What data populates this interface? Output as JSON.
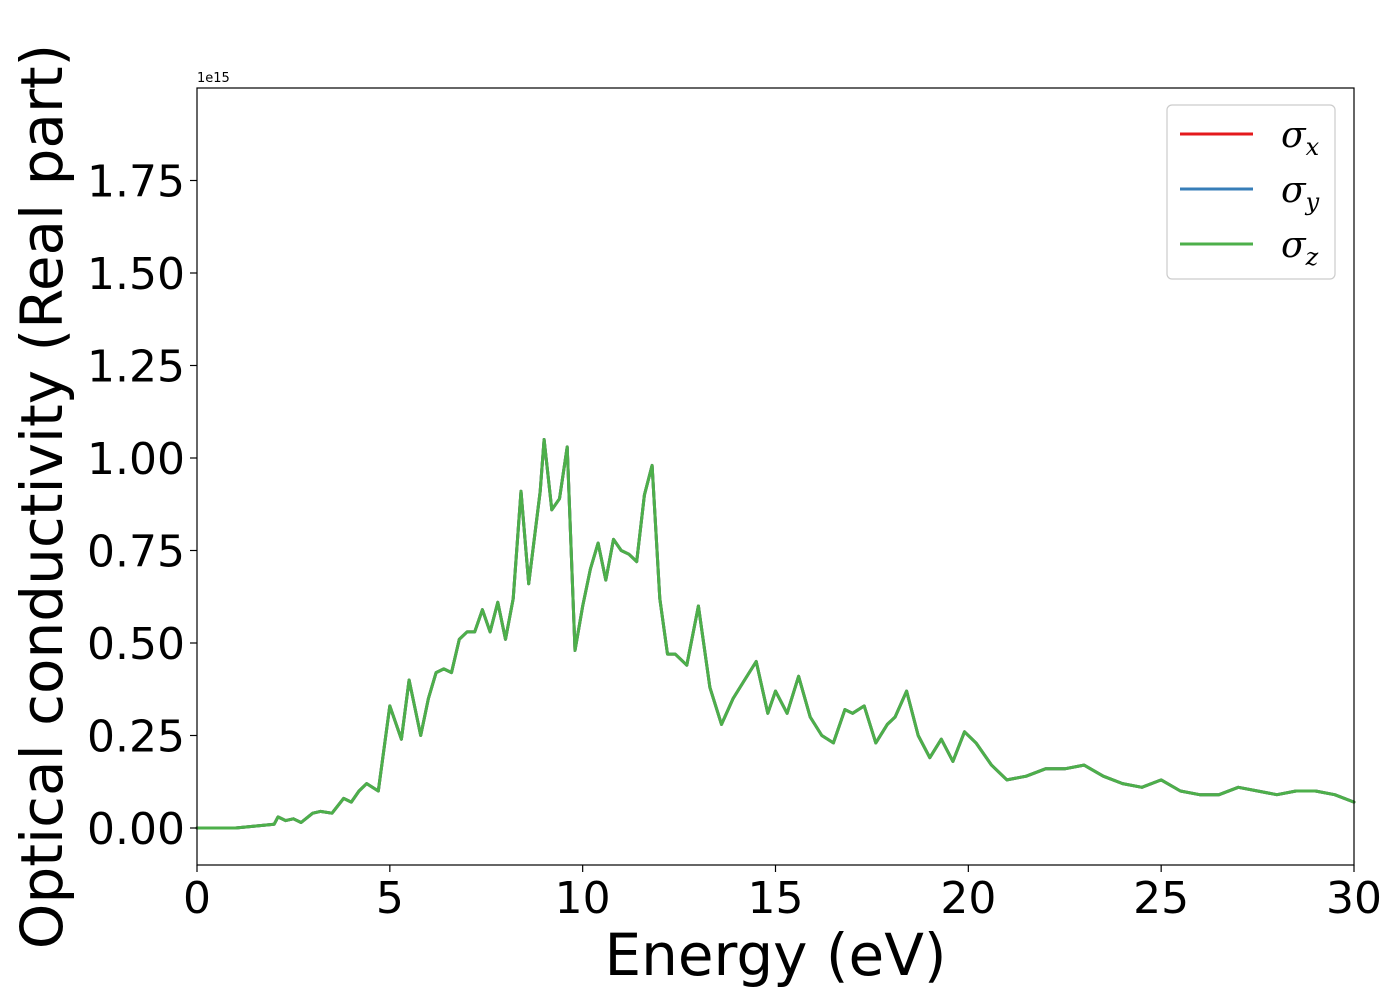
{
  "chart_data": {
    "type": "line",
    "xlabel": "Energy (eV)",
    "ylabel": "Optical conductivity (Real part)",
    "y_offset_label": "1e15",
    "xlim": [
      0,
      30
    ],
    "ylim": [
      -0.1,
      2.0
    ],
    "xticks": [
      0,
      5,
      10,
      15,
      20,
      25,
      30
    ],
    "xtick_labels": [
      "0",
      "5",
      "10",
      "15",
      "20",
      "25",
      "30"
    ],
    "yticks": [
      0.0,
      0.25,
      0.5,
      0.75,
      1.0,
      1.25,
      1.5,
      1.75
    ],
    "ytick_labels": [
      "0.00",
      "0.25",
      "0.50",
      "0.75",
      "1.00",
      "1.25",
      "1.50",
      "1.75"
    ],
    "grid": false,
    "legend_position": "top-right",
    "x": [
      0,
      0.5,
      1.0,
      1.5,
      2.0,
      2.1,
      2.3,
      2.5,
      2.7,
      3.0,
      3.2,
      3.5,
      3.8,
      4.0,
      4.2,
      4.4,
      4.7,
      5.0,
      5.3,
      5.5,
      5.8,
      6.0,
      6.2,
      6.4,
      6.6,
      6.8,
      7.0,
      7.2,
      7.4,
      7.6,
      7.8,
      8.0,
      8.2,
      8.4,
      8.6,
      8.9,
      9.0,
      9.2,
      9.4,
      9.6,
      9.8,
      10.0,
      10.2,
      10.4,
      10.6,
      10.8,
      11.0,
      11.2,
      11.4,
      11.6,
      11.8,
      12.0,
      12.2,
      12.4,
      12.7,
      13.0,
      13.3,
      13.6,
      13.9,
      14.2,
      14.5,
      14.8,
      15.0,
      15.3,
      15.6,
      15.9,
      16.2,
      16.5,
      16.8,
      17.0,
      17.3,
      17.6,
      17.9,
      18.1,
      18.4,
      18.7,
      19.0,
      19.3,
      19.6,
      19.9,
      20.2,
      20.6,
      21.0,
      21.5,
      22.0,
      22.5,
      23.0,
      23.5,
      24.0,
      24.5,
      25.0,
      25.5,
      26.0,
      26.5,
      27.0,
      27.5,
      28.0,
      28.5,
      29.0,
      29.5,
      30.0
    ],
    "series": [
      {
        "name": "σx",
        "color": "#e41a1c",
        "y": [
          0.0,
          0.0,
          0.0,
          0.005,
          0.01,
          0.03,
          0.02,
          0.025,
          0.015,
          0.04,
          0.045,
          0.04,
          0.08,
          0.07,
          0.1,
          0.12,
          0.1,
          0.33,
          0.24,
          0.4,
          0.25,
          0.35,
          0.42,
          0.43,
          0.42,
          0.51,
          0.53,
          0.53,
          0.59,
          0.53,
          0.61,
          0.51,
          0.62,
          0.91,
          0.66,
          0.91,
          1.05,
          0.86,
          0.89,
          1.03,
          0.48,
          0.6,
          0.7,
          0.77,
          0.67,
          0.78,
          0.75,
          0.74,
          0.72,
          0.9,
          0.98,
          0.62,
          0.47,
          0.47,
          0.44,
          0.6,
          0.38,
          0.28,
          0.35,
          0.4,
          0.45,
          0.31,
          0.37,
          0.31,
          0.41,
          0.3,
          0.25,
          0.23,
          0.32,
          0.31,
          0.33,
          0.23,
          0.28,
          0.3,
          0.37,
          0.25,
          0.19,
          0.24,
          0.18,
          0.26,
          0.23,
          0.17,
          0.13,
          0.14,
          0.16,
          0.16,
          0.17,
          0.14,
          0.12,
          0.11,
          0.13,
          0.1,
          0.09,
          0.09,
          0.11,
          0.1,
          0.09,
          0.1,
          0.1,
          0.09,
          0.07
        ]
      },
      {
        "name": "σy",
        "color": "#377eb8",
        "y": [
          0.0,
          0.0,
          0.0,
          0.005,
          0.01,
          0.03,
          0.02,
          0.025,
          0.015,
          0.04,
          0.045,
          0.04,
          0.08,
          0.07,
          0.1,
          0.12,
          0.1,
          0.33,
          0.24,
          0.4,
          0.25,
          0.35,
          0.42,
          0.43,
          0.42,
          0.51,
          0.53,
          0.53,
          0.59,
          0.53,
          0.61,
          0.51,
          0.62,
          0.91,
          0.66,
          0.91,
          1.05,
          0.86,
          0.89,
          1.03,
          0.48,
          0.6,
          0.7,
          0.77,
          0.67,
          0.78,
          0.75,
          0.74,
          0.72,
          0.9,
          0.98,
          0.62,
          0.47,
          0.47,
          0.44,
          0.6,
          0.38,
          0.28,
          0.35,
          0.4,
          0.45,
          0.31,
          0.37,
          0.31,
          0.41,
          0.3,
          0.25,
          0.23,
          0.32,
          0.31,
          0.33,
          0.23,
          0.28,
          0.3,
          0.37,
          0.25,
          0.19,
          0.24,
          0.18,
          0.26,
          0.23,
          0.17,
          0.13,
          0.14,
          0.16,
          0.16,
          0.17,
          0.14,
          0.12,
          0.11,
          0.13,
          0.1,
          0.09,
          0.09,
          0.11,
          0.1,
          0.09,
          0.1,
          0.1,
          0.09,
          0.07
        ]
      },
      {
        "name": "σz",
        "color": "#4daf4a",
        "y": [
          0.0,
          0.0,
          0.0,
          0.005,
          0.01,
          0.03,
          0.02,
          0.025,
          0.015,
          0.04,
          0.045,
          0.04,
          0.08,
          0.07,
          0.1,
          0.12,
          0.1,
          0.33,
          0.24,
          0.4,
          0.25,
          0.35,
          0.42,
          0.43,
          0.42,
          0.51,
          0.53,
          0.53,
          0.59,
          0.53,
          0.61,
          0.51,
          0.62,
          0.91,
          0.66,
          0.91,
          1.05,
          0.86,
          0.89,
          1.03,
          0.48,
          0.6,
          0.7,
          0.77,
          0.67,
          0.78,
          0.75,
          0.74,
          0.72,
          0.9,
          0.98,
          0.62,
          0.47,
          0.47,
          0.44,
          0.6,
          0.38,
          0.28,
          0.35,
          0.4,
          0.45,
          0.31,
          0.37,
          0.31,
          0.41,
          0.3,
          0.25,
          0.23,
          0.32,
          0.31,
          0.33,
          0.23,
          0.28,
          0.3,
          0.37,
          0.25,
          0.19,
          0.24,
          0.18,
          0.26,
          0.23,
          0.17,
          0.13,
          0.14,
          0.16,
          0.16,
          0.17,
          0.14,
          0.12,
          0.11,
          0.13,
          0.1,
          0.09,
          0.09,
          0.11,
          0.1,
          0.09,
          0.1,
          0.1,
          0.09,
          0.07
        ]
      }
    ],
    "legend": [
      {
        "symbol": "σ",
        "subscript": "x",
        "color": "#e41a1c"
      },
      {
        "symbol": "σ",
        "subscript": "y",
        "color": "#377eb8"
      },
      {
        "symbol": "σ",
        "subscript": "z",
        "color": "#4daf4a"
      }
    ]
  }
}
